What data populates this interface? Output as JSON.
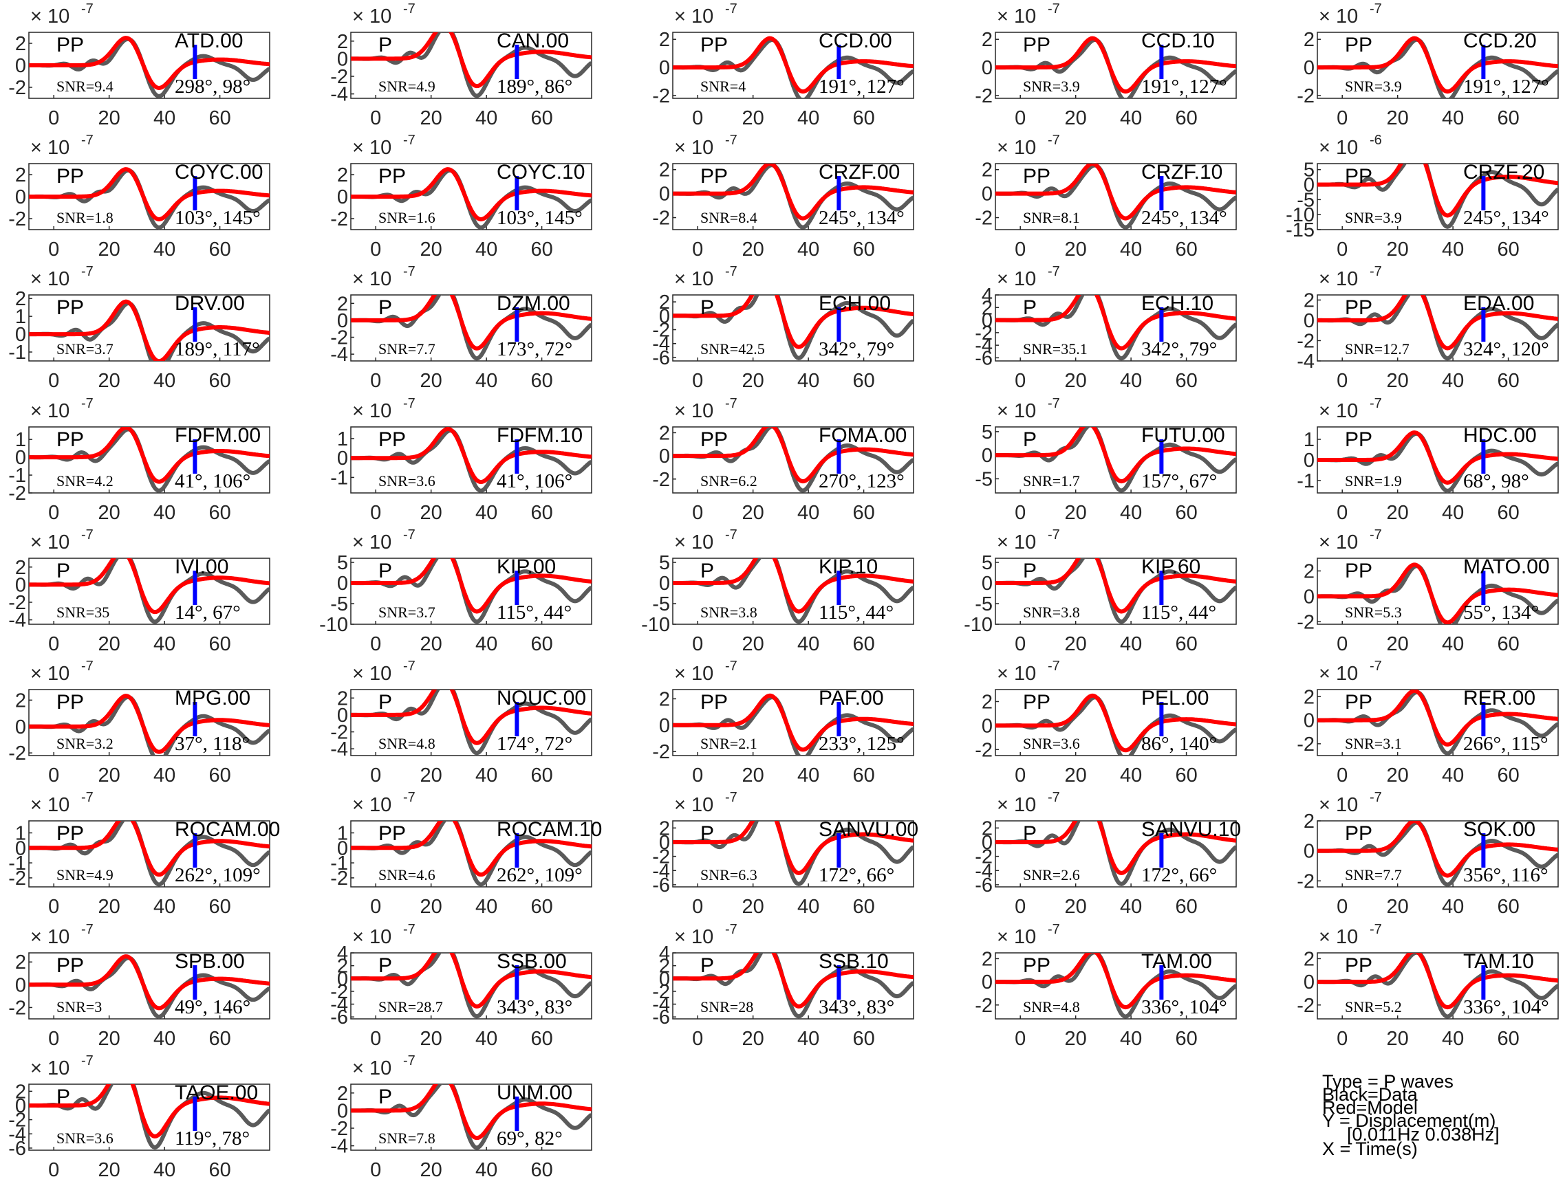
{
  "chart_data": {
    "type": "line",
    "x_ticks": [
      0,
      20,
      40,
      60
    ],
    "xlim": [
      -9,
      78
    ],
    "series_colors": {
      "data": "#5a5a5a",
      "model": "#ff0000",
      "marker": "#0000ff"
    },
    "legend_lines": [
      "Type = P waves",
      "Black=Data",
      "Red=Model",
      "Y = Displacement(m)",
      "[0.011Hz 0.038Hz]",
      "X = Time(s)"
    ],
    "panels": [
      {
        "station": "ATD.00",
        "phase": "PP",
        "snr": "SNR=9.4",
        "angles": "298°, 98°",
        "mult": "× 10",
        "exp": "-7",
        "yticks": [
          "2",
          "0",
          "-2"
        ],
        "ylim": [
          -3,
          3
        ]
      },
      {
        "station": "CAN.00",
        "phase": "P",
        "snr": "SNR=4.9",
        "angles": "189°, 86°",
        "mult": "× 10",
        "exp": "-7",
        "yticks": [
          "2",
          "0",
          "-2",
          "-4"
        ],
        "ylim": [
          -4.5,
          3
        ]
      },
      {
        "station": "CCD.00",
        "phase": "PP",
        "snr": "SNR=4",
        "angles": "191°, 127°",
        "mult": "× 10",
        "exp": "-7",
        "yticks": [
          "2",
          "0",
          "-2"
        ],
        "ylim": [
          -2.2,
          2.5
        ]
      },
      {
        "station": "CCD.10",
        "phase": "PP",
        "snr": "SNR=3.9",
        "angles": "191°, 127°",
        "mult": "× 10",
        "exp": "-7",
        "yticks": [
          "2",
          "0",
          "-2"
        ],
        "ylim": [
          -2.2,
          2.5
        ]
      },
      {
        "station": "CCD.20",
        "phase": "PP",
        "snr": "SNR=3.9",
        "angles": "191°, 127°",
        "mult": "× 10",
        "exp": "-7",
        "yticks": [
          "2",
          "0",
          "-2"
        ],
        "ylim": [
          -2.2,
          2.5
        ]
      },
      {
        "station": "COYC.00",
        "phase": "PP",
        "snr": "SNR=1.8",
        "angles": "103°, 145°",
        "mult": "× 10",
        "exp": "-7",
        "yticks": [
          "2",
          "0",
          "-2"
        ],
        "ylim": [
          -3,
          3
        ]
      },
      {
        "station": "COYC.10",
        "phase": "PP",
        "snr": "SNR=1.6",
        "angles": "103°, 145°",
        "mult": "× 10",
        "exp": "-7",
        "yticks": [
          "2",
          "0",
          "-2"
        ],
        "ylim": [
          -3,
          3
        ]
      },
      {
        "station": "CRZF.00",
        "phase": "PP",
        "snr": "SNR=8.4",
        "angles": "245°, 134°",
        "mult": "× 10",
        "exp": "-7",
        "yticks": [
          "2",
          "0",
          "-2"
        ],
        "ylim": [
          -3,
          2.5
        ]
      },
      {
        "station": "CRZF.10",
        "phase": "PP",
        "snr": "SNR=8.1",
        "angles": "245°, 134°",
        "mult": "× 10",
        "exp": "-7",
        "yticks": [
          "2",
          "0",
          "-2"
        ],
        "ylim": [
          -3,
          2.5
        ]
      },
      {
        "station": "CRZF.20",
        "phase": "PP",
        "snr": "SNR=3.9",
        "angles": "245°, 134°",
        "mult": "× 10",
        "exp": "-6",
        "yticks": [
          "5",
          "0",
          "-5",
          "-10",
          "-15"
        ],
        "ylim": [
          -15,
          7
        ]
      },
      {
        "station": "DRV.00",
        "phase": "PP",
        "snr": "SNR=3.7",
        "angles": "189°, 117°",
        "mult": "× 10",
        "exp": "-7",
        "yticks": [
          "2",
          "1",
          "0",
          "-1"
        ],
        "ylim": [
          -1.5,
          2.2
        ]
      },
      {
        "station": "DZM.00",
        "phase": "P",
        "snr": "SNR=7.7",
        "angles": "173°, 72°",
        "mult": "× 10",
        "exp": "-7",
        "yticks": [
          "2",
          "0",
          "-2",
          "-4"
        ],
        "ylim": [
          -4.8,
          3
        ]
      },
      {
        "station": "ECH.00",
        "phase": "P",
        "snr": "SNR=42.5",
        "angles": "342°, 79°",
        "mult": "× 10",
        "exp": "-7",
        "yticks": [
          "2",
          "0",
          "-2",
          "-4",
          "-6"
        ],
        "ylim": [
          -6.5,
          3
        ]
      },
      {
        "station": "ECH.10",
        "phase": "P",
        "snr": "SNR=35.1",
        "angles": "342°, 79°",
        "mult": "× 10",
        "exp": "-7",
        "yticks": [
          "4",
          "2",
          "0",
          "-2",
          "-4",
          "-6"
        ],
        "ylim": [
          -6.5,
          4
        ]
      },
      {
        "station": "EDA.00",
        "phase": "PP",
        "snr": "SNR=12.7",
        "angles": "324°, 120°",
        "mult": "× 10",
        "exp": "-7",
        "yticks": [
          "2",
          "0",
          "-2",
          "-4"
        ],
        "ylim": [
          -4,
          2.5
        ]
      },
      {
        "station": "FDFM.00",
        "phase": "PP",
        "snr": "SNR=4.2",
        "angles": "41°, 106°",
        "mult": "× 10",
        "exp": "-7",
        "yticks": [
          "1",
          "0",
          "-1",
          "-2"
        ],
        "ylim": [
          -2,
          1.7
        ]
      },
      {
        "station": "FDFM.10",
        "phase": "PP",
        "snr": "SNR=3.6",
        "angles": "41°, 106°",
        "mult": "× 10",
        "exp": "-7",
        "yticks": [
          "1",
          "0",
          "-1"
        ],
        "ylim": [
          -1.8,
          1.6
        ]
      },
      {
        "station": "FOMA.00",
        "phase": "PP",
        "snr": "SNR=6.2",
        "angles": "270°, 123°",
        "mult": "× 10",
        "exp": "-7",
        "yticks": [
          "2",
          "0",
          "-2"
        ],
        "ylim": [
          -3.2,
          2.5
        ]
      },
      {
        "station": "FUTU.00",
        "phase": "P",
        "snr": "SNR=1.7",
        "angles": "157°, 67°",
        "mult": "× 10",
        "exp": "-7",
        "yticks": [
          "5",
          "0",
          "-5"
        ],
        "ylim": [
          -8,
          6
        ]
      },
      {
        "station": "HDC.00",
        "phase": "PP",
        "snr": "SNR=1.9",
        "angles": "68°, 98°",
        "mult": "× 10",
        "exp": "-7",
        "yticks": [
          "1",
          "0",
          "-1"
        ],
        "ylim": [
          -1.6,
          1.6
        ]
      },
      {
        "station": "IVI.00",
        "phase": "P",
        "snr": "SNR=35",
        "angles": "14°, 67°",
        "mult": "× 10",
        "exp": "-7",
        "yticks": [
          "2",
          "0",
          "-2",
          "-4"
        ],
        "ylim": [
          -4.5,
          3
        ]
      },
      {
        "station": "KIP.00",
        "phase": "P",
        "snr": "SNR=3.7",
        "angles": "115°, 44°",
        "mult": "× 10",
        "exp": "-7",
        "yticks": [
          "5",
          "0",
          "-5",
          "-10"
        ],
        "ylim": [
          -10,
          6
        ]
      },
      {
        "station": "KIP.10",
        "phase": "P",
        "snr": "SNR=3.8",
        "angles": "115°, 44°",
        "mult": "× 10",
        "exp": "-7",
        "yticks": [
          "5",
          "0",
          "-5",
          "-10"
        ],
        "ylim": [
          -10,
          6
        ]
      },
      {
        "station": "KIP.60",
        "phase": "P",
        "snr": "SNR=3.8",
        "angles": "115°, 44°",
        "mult": "× 10",
        "exp": "-7",
        "yticks": [
          "5",
          "0",
          "-5",
          "-10"
        ],
        "ylim": [
          -10,
          6
        ]
      },
      {
        "station": "MATO.00",
        "phase": "PP",
        "snr": "SNR=5.3",
        "angles": "55°, 134°",
        "mult": "× 10",
        "exp": "-7",
        "yticks": [
          "2",
          "0",
          "-2"
        ],
        "ylim": [
          -2.2,
          3
        ]
      },
      {
        "station": "MPG.00",
        "phase": "PP",
        "snr": "SNR=3.2",
        "angles": "37°, 118°",
        "mult": "× 10",
        "exp": "-7",
        "yticks": [
          "2",
          "0",
          "-2"
        ],
        "ylim": [
          -2.2,
          2.8
        ]
      },
      {
        "station": "NOUC.00",
        "phase": "P",
        "snr": "SNR=4.8",
        "angles": "174°, 72°",
        "mult": "× 10",
        "exp": "-7",
        "yticks": [
          "2",
          "0",
          "-2",
          "-4"
        ],
        "ylim": [
          -4.8,
          3
        ]
      },
      {
        "station": "PAF.00",
        "phase": "PP",
        "snr": "SNR=2.1",
        "angles": "233°, 125°",
        "mult": "× 10",
        "exp": "-7",
        "yticks": [
          "2",
          "0",
          "-2"
        ],
        "ylim": [
          -2.3,
          2.7
        ]
      },
      {
        "station": "PEL.00",
        "phase": "PP",
        "snr": "SNR=3.6",
        "angles": "86°, 140°",
        "mult": "× 10",
        "exp": "-7",
        "yticks": [
          "2",
          "0",
          "-2"
        ],
        "ylim": [
          -2.5,
          3
        ]
      },
      {
        "station": "RER.00",
        "phase": "PP",
        "snr": "SNR=3.1",
        "angles": "266°, 115°",
        "mult": "× 10",
        "exp": "-7",
        "yticks": [
          "2",
          "0",
          "-2"
        ],
        "ylim": [
          -3,
          2.6
        ]
      },
      {
        "station": "ROCAM.00",
        "phase": "PP",
        "snr": "SNR=4.9",
        "angles": "262°, 109°",
        "mult": "× 10",
        "exp": "-7",
        "yticks": [
          "1",
          "0",
          "-1",
          "-2"
        ],
        "ylim": [
          -2.6,
          1.8
        ]
      },
      {
        "station": "ROCAM.10",
        "phase": "PP",
        "snr": "SNR=4.6",
        "angles": "262°, 109°",
        "mult": "× 10",
        "exp": "-7",
        "yticks": [
          "1",
          "0",
          "-1",
          "-2"
        ],
        "ylim": [
          -2.6,
          1.8
        ]
      },
      {
        "station": "SANVU.00",
        "phase": "P",
        "snr": "SNR=6.3",
        "angles": "172°, 66°",
        "mult": "× 10",
        "exp": "-7",
        "yticks": [
          "2",
          "0",
          "-2",
          "-4",
          "-6"
        ],
        "ylim": [
          -6.3,
          3
        ]
      },
      {
        "station": "SANVU.10",
        "phase": "P",
        "snr": "SNR=2.6",
        "angles": "172°, 66°",
        "mult": "× 10",
        "exp": "-7",
        "yticks": [
          "2",
          "0",
          "-2",
          "-4",
          "-6"
        ],
        "ylim": [
          -6.3,
          3
        ]
      },
      {
        "station": "SOK.00",
        "phase": "PP",
        "snr": "SNR=7.7",
        "angles": "356°, 116°",
        "mult": "× 10",
        "exp": "-7",
        "yticks": [
          "2",
          "0",
          "-2"
        ],
        "ylim": [
          -2.4,
          2
        ]
      },
      {
        "station": "SPB.00",
        "phase": "PP",
        "snr": "SNR=3",
        "angles": "49°, 146°",
        "mult": "× 10",
        "exp": "-7",
        "yticks": [
          "2",
          "0",
          "-2"
        ],
        "ylim": [
          -3,
          2.8
        ]
      },
      {
        "station": "SSB.00",
        "phase": "P",
        "snr": "SNR=28.7",
        "angles": "343°, 83°",
        "mult": "× 10",
        "exp": "-7",
        "yticks": [
          "4",
          "2",
          "0",
          "-2",
          "-4",
          "-6"
        ],
        "ylim": [
          -6.3,
          4
        ]
      },
      {
        "station": "SSB.10",
        "phase": "P",
        "snr": "SNR=28",
        "angles": "343°, 83°",
        "mult": "× 10",
        "exp": "-7",
        "yticks": [
          "4",
          "2",
          "0",
          "-2",
          "-4",
          "-6"
        ],
        "ylim": [
          -6.3,
          4
        ]
      },
      {
        "station": "TAM.00",
        "phase": "PP",
        "snr": "SNR=4.8",
        "angles": "336°, 104°",
        "mult": "× 10",
        "exp": "-7",
        "yticks": [
          "2",
          "0",
          "-2"
        ],
        "ylim": [
          -3.2,
          2.5
        ]
      },
      {
        "station": "TAM.10",
        "phase": "PP",
        "snr": "SNR=5.2",
        "angles": "336°, 104°",
        "mult": "× 10",
        "exp": "-7",
        "yticks": [
          "2",
          "0",
          "-2"
        ],
        "ylim": [
          -3.2,
          2.5
        ]
      },
      {
        "station": "TAOE.00",
        "phase": "P",
        "snr": "SNR=3.6",
        "angles": "119°, 78°",
        "mult": "× 10",
        "exp": "-7",
        "yticks": [
          "2",
          "0",
          "-2",
          "-4",
          "-6"
        ],
        "ylim": [
          -6.3,
          3
        ]
      },
      {
        "station": "UNM.00",
        "phase": "P",
        "snr": "SNR=7.8",
        "angles": "69°, 82°",
        "mult": "× 10",
        "exp": "-7",
        "yticks": [
          "2",
          "0",
          "-2",
          "-4"
        ],
        "ylim": [
          -4.5,
          3
        ]
      }
    ]
  }
}
